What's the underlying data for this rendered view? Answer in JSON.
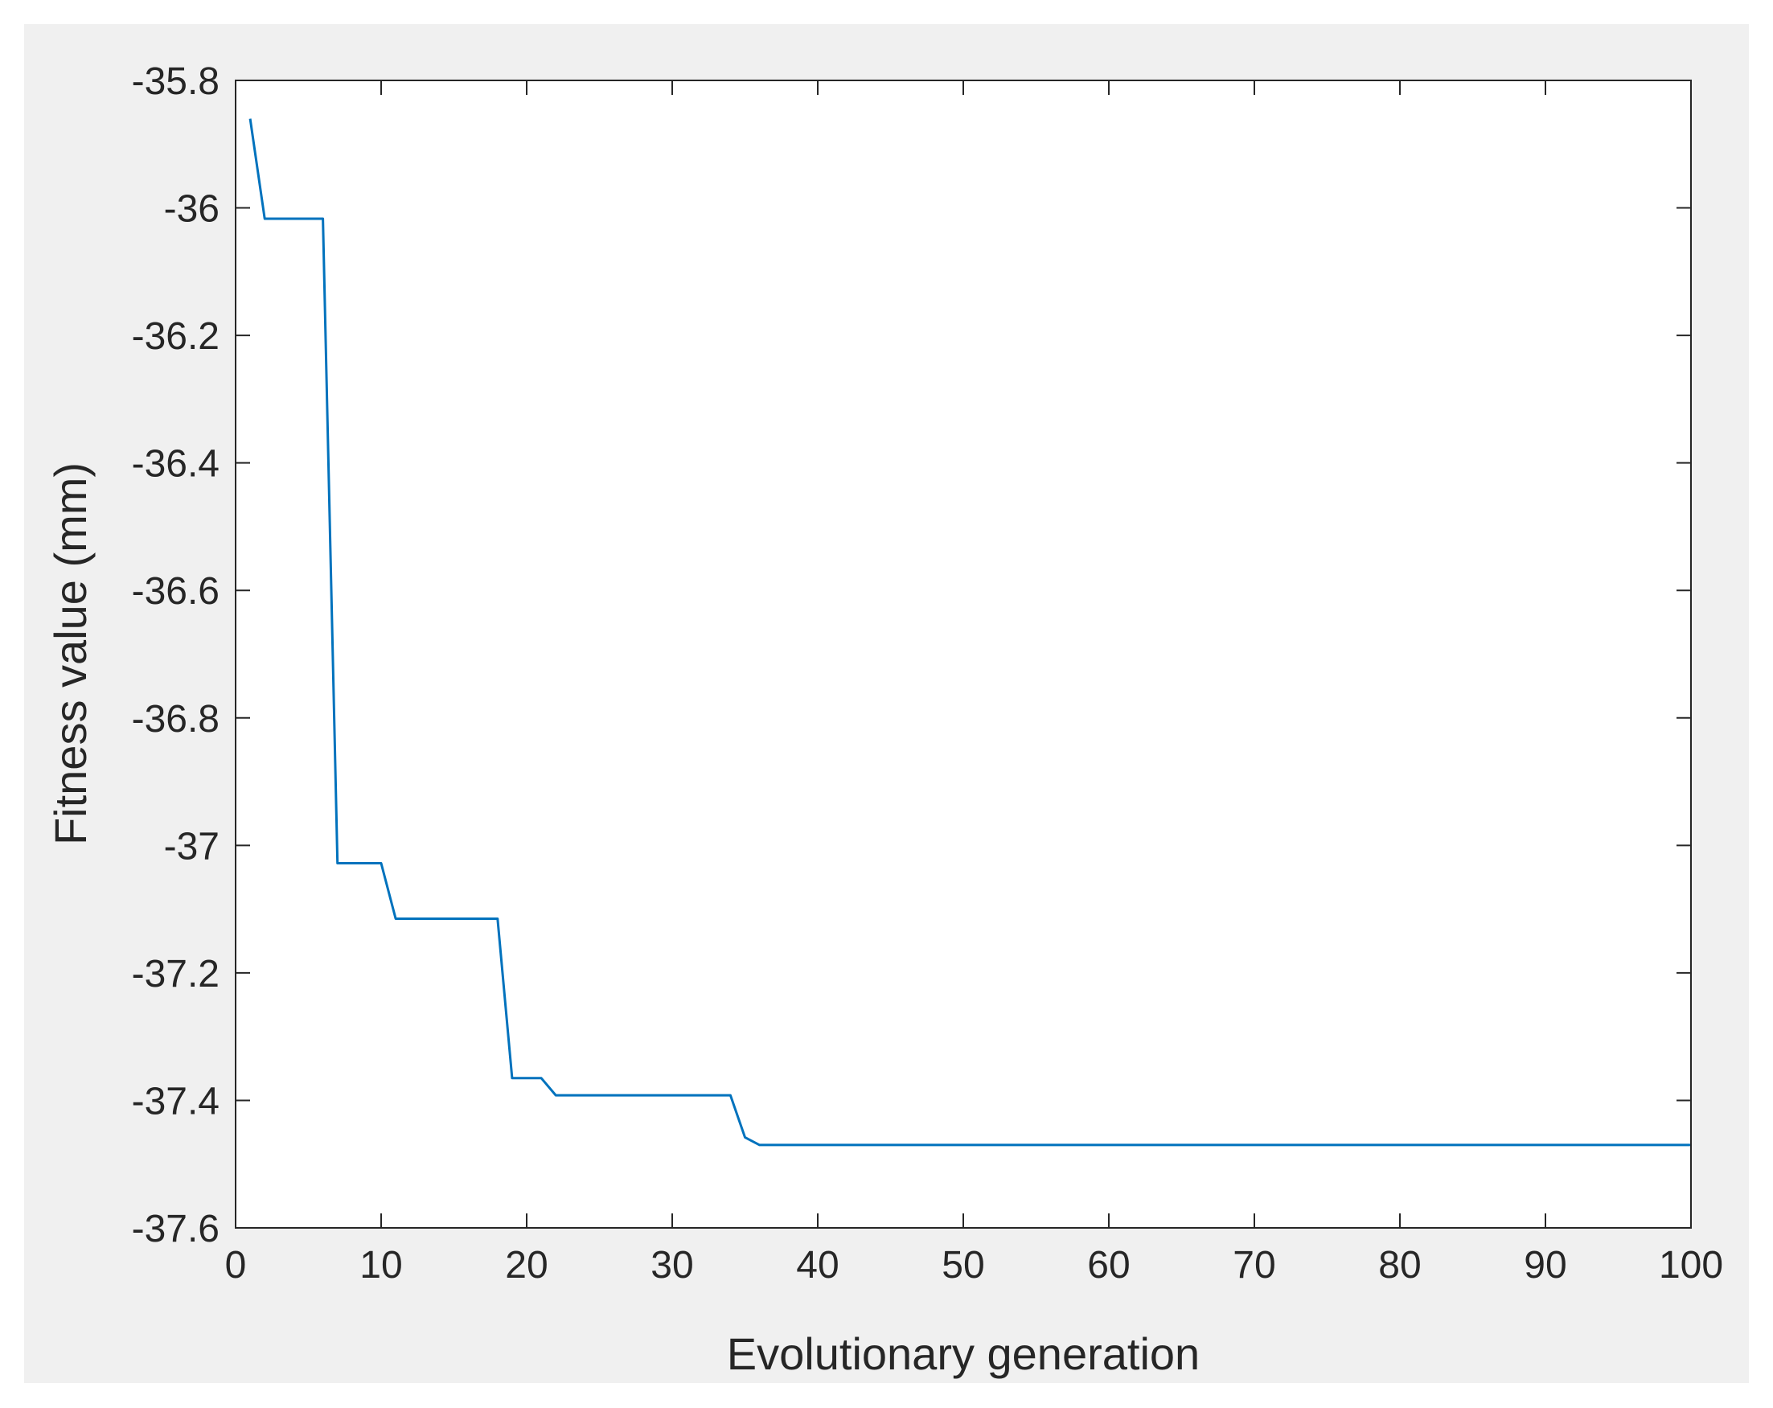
{
  "figure": {
    "background_color": "#f0f0f0",
    "axes_background_color": "#ffffff",
    "axes_color": "#262626",
    "line_color": "#0072bd"
  },
  "chart_data": {
    "type": "line",
    "xlabel": "Evolutionary generation",
    "ylabel": "Fitness value (mm)",
    "xlim": [
      0,
      100
    ],
    "ylim": [
      -37.6,
      -35.8
    ],
    "xticks": [
      0,
      10,
      20,
      30,
      40,
      50,
      60,
      70,
      80,
      90,
      100
    ],
    "yticks": [
      -35.8,
      -36,
      -36.2,
      -36.4,
      -36.6,
      -36.8,
      -37,
      -37.2,
      -37.4,
      -37.6
    ],
    "xtick_labels": [
      "0",
      "10",
      "20",
      "30",
      "40",
      "50",
      "60",
      "70",
      "80",
      "90",
      "100"
    ],
    "ytick_labels": [
      "-35.8",
      "-36",
      "-36.2",
      "-36.4",
      "-36.6",
      "-36.8",
      "-37",
      "-37.2",
      "-37.4",
      "-37.6"
    ],
    "grid": false,
    "series": [
      {
        "x": [
          1,
          2,
          3,
          4,
          5,
          6,
          7,
          8,
          9,
          10,
          11,
          12,
          13,
          14,
          15,
          16,
          17,
          18,
          19,
          20,
          21,
          22,
          23,
          24,
          25,
          26,
          27,
          28,
          29,
          30,
          31,
          32,
          33,
          34,
          35,
          36,
          37,
          38,
          39,
          40,
          41,
          42,
          43,
          44,
          45,
          46,
          47,
          48,
          49,
          50,
          51,
          52,
          53,
          54,
          55,
          56,
          57,
          58,
          59,
          60,
          61,
          62,
          63,
          64,
          65,
          66,
          67,
          68,
          69,
          70,
          71,
          72,
          73,
          74,
          75,
          76,
          77,
          78,
          79,
          80,
          81,
          82,
          83,
          84,
          85,
          86,
          87,
          88,
          89,
          90,
          91,
          92,
          93,
          94,
          95,
          96,
          97,
          98,
          99,
          100
        ],
        "values": [
          -35.86,
          -36.017,
          -36.017,
          -36.017,
          -36.017,
          -36.017,
          -37.028,
          -37.028,
          -37.028,
          -37.028,
          -37.115,
          -37.115,
          -37.115,
          -37.115,
          -37.115,
          -37.115,
          -37.115,
          -37.115,
          -37.365,
          -37.365,
          -37.365,
          -37.392,
          -37.392,
          -37.392,
          -37.392,
          -37.392,
          -37.392,
          -37.392,
          -37.392,
          -37.392,
          -37.392,
          -37.392,
          -37.392,
          -37.392,
          -37.458,
          -37.47,
          -37.47,
          -37.47,
          -37.47,
          -37.47,
          -37.47,
          -37.47,
          -37.47,
          -37.47,
          -37.47,
          -37.47,
          -37.47,
          -37.47,
          -37.47,
          -37.47,
          -37.47,
          -37.47,
          -37.47,
          -37.47,
          -37.47,
          -37.47,
          -37.47,
          -37.47,
          -37.47,
          -37.47,
          -37.47,
          -37.47,
          -37.47,
          -37.47,
          -37.47,
          -37.47,
          -37.47,
          -37.47,
          -37.47,
          -37.47,
          -37.47,
          -37.47,
          -37.47,
          -37.47,
          -37.47,
          -37.47,
          -37.47,
          -37.47,
          -37.47,
          -37.47,
          -37.47,
          -37.47,
          -37.47,
          -37.47,
          -37.47,
          -37.47,
          -37.47,
          -37.47,
          -37.47,
          -37.47,
          -37.47,
          -37.47,
          -37.47,
          -37.47,
          -37.47,
          -37.47,
          -37.47,
          -37.47,
          -37.47,
          -37.47
        ]
      }
    ]
  }
}
